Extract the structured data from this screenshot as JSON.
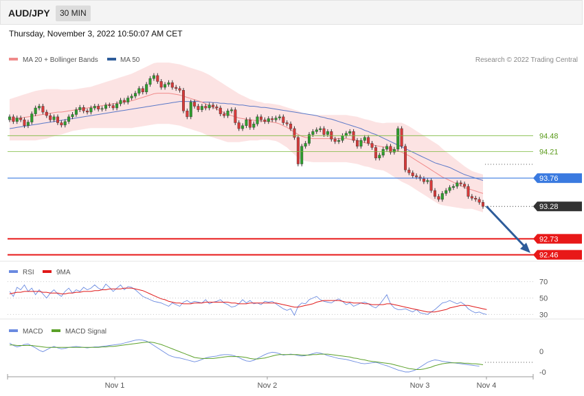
{
  "header": {
    "symbol": "AUD/JPY",
    "timeframe": "30 MIN"
  },
  "datetime": "Thursday, November 3, 2022 10:50:07 AM CET",
  "credit": "Research © 2022 Trading Central",
  "colors": {
    "up": "#2e9e2e",
    "down": "#d63a3a",
    "ma20": "#f08a8a",
    "band": "#fcdede",
    "ma50": "#5a78c8",
    "pivot": "#3a7ae0",
    "support": "#e81818",
    "resistance": "#7ab83a",
    "last": "#333333",
    "arrow": "#2e5c9a",
    "rsi": "#6a8ae0",
    "rsi_ma": "#e01818",
    "macd": "#6a8ae0",
    "macd_signal": "#5aa028"
  },
  "chart_data": [
    {
      "type": "candlestick",
      "name": "price",
      "legend": [
        "MA 20 + Bollinger Bands",
        "MA 50"
      ],
      "x_ticks": [
        "Nov 1",
        "Nov 2",
        "Nov 3",
        "Nov 4"
      ],
      "levels": [
        {
          "value": 94.48,
          "label": "94.48",
          "kind": "resistance"
        },
        {
          "value": 94.21,
          "label": "94.21",
          "kind": "resistance"
        },
        {
          "value": 93.76,
          "label": "93.76",
          "kind": "pivot"
        },
        {
          "value": 93.28,
          "label": "93.28",
          "kind": "last"
        },
        {
          "value": 92.73,
          "label": "92.73",
          "kind": "support"
        },
        {
          "value": 92.46,
          "label": "92.46",
          "kind": "support"
        }
      ],
      "close": [
        94.8,
        94.72,
        94.78,
        94.75,
        94.65,
        94.71,
        94.85,
        94.95,
        94.98,
        94.88,
        94.82,
        94.75,
        94.8,
        94.7,
        94.66,
        94.72,
        94.8,
        94.84,
        94.92,
        94.96,
        94.9,
        94.88,
        94.95,
        94.98,
        94.93,
        94.94,
        95.0,
        94.99,
        94.95,
        95.02,
        95.08,
        95.05,
        95.12,
        95.15,
        95.2,
        95.28,
        95.22,
        95.35,
        95.45,
        95.5,
        95.4,
        95.3,
        95.35,
        95.38,
        95.3,
        95.28,
        95.25,
        94.9,
        94.8,
        95.05,
        94.98,
        94.92,
        94.98,
        94.95,
        95.0,
        94.97,
        94.95,
        94.85,
        94.82,
        94.9,
        94.92,
        94.7,
        94.6,
        94.65,
        94.75,
        94.62,
        94.68,
        94.8,
        94.75,
        94.72,
        94.77,
        94.75,
        94.78,
        94.8,
        94.7,
        94.68,
        94.6,
        94.45,
        94.0,
        94.3,
        94.35,
        94.5,
        94.55,
        94.58,
        94.6,
        94.5,
        94.55,
        94.42,
        94.38,
        94.4,
        94.48,
        94.52,
        94.55,
        94.4,
        94.3,
        94.4,
        94.45,
        94.35,
        94.28,
        94.1,
        94.15,
        94.25,
        94.3,
        94.2,
        94.25,
        94.6,
        94.3,
        93.9,
        93.85,
        93.8,
        93.78,
        93.75,
        93.7,
        93.72,
        93.55,
        93.45,
        93.4,
        93.5,
        93.55,
        93.6,
        93.62,
        93.68,
        93.66,
        93.62,
        93.45,
        93.42,
        93.4,
        93.35,
        93.28
      ],
      "ma20": [
        94.75,
        94.76,
        94.77,
        94.78,
        94.79,
        94.8,
        94.81,
        94.82,
        94.83,
        94.84,
        94.85,
        94.86,
        94.87,
        94.88,
        94.88,
        94.89,
        94.9,
        94.91,
        94.92,
        94.93,
        94.94,
        94.95,
        94.96,
        94.97,
        94.98,
        94.99,
        95.0,
        95.01,
        95.02,
        95.03,
        95.04,
        95.05,
        95.06,
        95.07,
        95.09,
        95.11,
        95.13,
        95.15,
        95.17,
        95.19,
        95.2,
        95.2,
        95.2,
        95.2,
        95.19,
        95.18,
        95.17,
        95.15,
        95.13,
        95.11,
        95.09,
        95.07,
        95.05,
        95.02,
        94.99,
        94.96,
        94.93,
        94.9,
        94.87,
        94.84,
        94.82,
        94.8,
        94.78,
        94.77,
        94.76,
        94.75,
        94.74,
        94.73,
        94.73,
        94.72,
        94.72,
        94.71,
        94.7,
        94.68,
        94.65,
        94.62,
        94.58,
        94.54,
        94.5,
        94.47,
        94.45,
        94.44,
        94.43,
        94.43,
        94.43,
        94.43,
        94.43,
        94.43,
        94.43,
        94.43,
        94.43,
        94.43,
        94.42,
        94.41,
        94.4,
        94.38,
        94.36,
        94.35,
        94.33,
        94.31,
        94.3,
        94.29,
        94.28,
        94.26,
        94.24,
        94.22,
        94.2,
        94.17,
        94.14,
        94.1,
        94.06,
        94.02,
        93.98,
        93.94,
        93.9,
        93.86,
        93.82,
        93.78,
        93.75,
        93.72,
        93.69,
        93.66,
        93.63,
        93.6,
        93.58,
        93.56,
        93.54,
        93.52,
        93.5
      ],
      "bb_width": [
        0.35,
        0.36,
        0.37,
        0.38,
        0.39,
        0.4,
        0.41,
        0.42,
        0.42,
        0.42,
        0.42,
        0.41,
        0.4,
        0.39,
        0.38,
        0.37,
        0.36,
        0.35,
        0.35,
        0.35,
        0.35,
        0.35,
        0.35,
        0.36,
        0.37,
        0.38,
        0.39,
        0.4,
        0.41,
        0.42,
        0.43,
        0.44,
        0.45,
        0.46,
        0.47,
        0.48,
        0.49,
        0.5,
        0.51,
        0.52,
        0.52,
        0.52,
        0.52,
        0.52,
        0.52,
        0.52,
        0.52,
        0.52,
        0.52,
        0.52,
        0.52,
        0.52,
        0.52,
        0.52,
        0.52,
        0.51,
        0.5,
        0.49,
        0.48,
        0.47,
        0.45,
        0.43,
        0.41,
        0.39,
        0.37,
        0.35,
        0.34,
        0.33,
        0.32,
        0.31,
        0.31,
        0.31,
        0.31,
        0.32,
        0.33,
        0.34,
        0.36,
        0.38,
        0.4,
        0.4,
        0.4,
        0.4,
        0.4,
        0.4,
        0.4,
        0.4,
        0.4,
        0.4,
        0.4,
        0.4,
        0.4,
        0.4,
        0.4,
        0.4,
        0.4,
        0.4,
        0.4,
        0.4,
        0.4,
        0.4,
        0.4,
        0.4,
        0.42,
        0.44,
        0.46,
        0.48,
        0.5,
        0.5,
        0.5,
        0.5,
        0.5,
        0.5,
        0.5,
        0.5,
        0.5,
        0.5,
        0.5,
        0.48,
        0.46,
        0.44,
        0.42,
        0.4,
        0.38,
        0.36,
        0.34,
        0.32,
        0.32,
        0.32,
        0.32
      ],
      "ma50": [
        94.6,
        94.61,
        94.62,
        94.63,
        94.64,
        94.65,
        94.66,
        94.67,
        94.68,
        94.69,
        94.7,
        94.71,
        94.72,
        94.73,
        94.74,
        94.75,
        94.76,
        94.77,
        94.78,
        94.79,
        94.8,
        94.81,
        94.82,
        94.83,
        94.84,
        94.85,
        94.86,
        94.87,
        94.88,
        94.89,
        94.9,
        94.91,
        94.92,
        94.93,
        94.94,
        94.95,
        94.96,
        94.97,
        94.98,
        94.99,
        95.0,
        95.01,
        95.02,
        95.03,
        95.04,
        95.05,
        95.06,
        95.06,
        95.06,
        95.06,
        95.06,
        95.06,
        95.05,
        95.05,
        95.05,
        95.04,
        95.04,
        95.03,
        95.03,
        95.02,
        95.02,
        95.01,
        95.0,
        95.0,
        94.99,
        94.98,
        94.98,
        94.97,
        94.96,
        94.96,
        94.95,
        94.94,
        94.93,
        94.92,
        94.91,
        94.9,
        94.89,
        94.88,
        94.87,
        94.86,
        94.85,
        94.84,
        94.83,
        94.82,
        94.8,
        94.79,
        94.77,
        94.76,
        94.74,
        94.72,
        94.7,
        94.68,
        94.66,
        94.64,
        94.62,
        94.6,
        94.57,
        94.55,
        94.52,
        94.5,
        94.47,
        94.44,
        94.41,
        94.38,
        94.35,
        94.32,
        94.29,
        94.26,
        94.23,
        94.2,
        94.17,
        94.14,
        94.11,
        94.08,
        94.05,
        94.02,
        94.0,
        93.98,
        93.96,
        93.94,
        93.91,
        93.88,
        93.85,
        93.82,
        93.8,
        93.78,
        93.76,
        93.74,
        93.72
      ],
      "ylim": [
        92.35,
        95.65
      ]
    },
    {
      "type": "line",
      "name": "rsi",
      "legend": [
        "RSI",
        "9MA"
      ],
      "y_ticks": [
        "70",
        "50",
        "30"
      ],
      "ylim": [
        22,
        78
      ],
      "series": [
        {
          "name": "RSI",
          "values": [
            58,
            52,
            63,
            60,
            66,
            58,
            62,
            54,
            60,
            55,
            50,
            56,
            60,
            55,
            52,
            58,
            62,
            56,
            60,
            58,
            63,
            60,
            62,
            66,
            62,
            60,
            67,
            63,
            58,
            62,
            66,
            60,
            64,
            63,
            60,
            56,
            52,
            50,
            48,
            46,
            45,
            44,
            42,
            40,
            44,
            42,
            40,
            45,
            47,
            44,
            46,
            45,
            44,
            48,
            43,
            45,
            46,
            48,
            44,
            42,
            39,
            40,
            43,
            48,
            44,
            47,
            43,
            44,
            42,
            46,
            45,
            46,
            43,
            40,
            37,
            35,
            37,
            29,
            40,
            44,
            43,
            48,
            50,
            52,
            48,
            46,
            45,
            44,
            47,
            49,
            46,
            42,
            44,
            40,
            42,
            44,
            45,
            43,
            40,
            38,
            42,
            48,
            54,
            43,
            38,
            36,
            36,
            37,
            35,
            33,
            36,
            32,
            31,
            30,
            33,
            36,
            40,
            44,
            45,
            47,
            45,
            43,
            45,
            42,
            37,
            34,
            32,
            33,
            31,
            30
          ]
        },
        {
          "name": "9MA",
          "values": [
            55,
            56,
            57,
            57,
            58,
            58,
            58,
            58,
            58,
            57,
            57,
            56,
            56,
            56,
            55,
            55,
            56,
            56,
            57,
            57,
            58,
            58,
            58,
            59,
            59,
            60,
            60,
            61,
            61,
            61,
            61,
            62,
            62,
            62,
            61,
            60,
            59,
            57,
            55,
            53,
            51,
            49,
            48,
            46,
            45,
            44,
            44,
            43,
            43,
            43,
            44,
            44,
            44,
            45,
            45,
            45,
            45,
            45,
            45,
            45,
            44,
            44,
            43,
            43,
            43,
            44,
            44,
            44,
            44,
            44,
            44,
            44,
            44,
            43,
            42,
            41,
            40,
            39,
            39,
            40,
            41,
            42,
            43,
            45,
            46,
            47,
            47,
            47,
            47,
            47,
            46,
            45,
            45,
            44,
            44,
            44,
            43,
            43,
            42,
            42,
            42,
            42,
            43,
            43,
            42,
            41,
            40,
            39,
            38,
            37,
            36,
            35,
            34,
            33,
            33,
            33,
            34,
            35,
            36,
            38,
            39,
            40,
            41,
            41,
            41,
            40,
            39,
            38,
            37,
            36
          ]
        }
      ]
    },
    {
      "type": "line",
      "name": "macd",
      "legend": [
        "MACD",
        "MACD Signal"
      ],
      "y_ticks": [
        "0",
        "-0"
      ],
      "ylim": [
        -0.5,
        0.5
      ],
      "series": [
        {
          "name": "MACD",
          "values": [
            0.2,
            0.15,
            0.12,
            0.14,
            0.17,
            0.18,
            0.14,
            0.1,
            0.05,
            0.02,
            0.06,
            0.1,
            0.13,
            0.1,
            0.08,
            0.09,
            0.11,
            0.12,
            0.13,
            0.12,
            0.11,
            0.1,
            0.11,
            0.12,
            0.12,
            0.13,
            0.14,
            0.15,
            0.16,
            0.17,
            0.18,
            0.2,
            0.22,
            0.24,
            0.26,
            0.27,
            0.26,
            0.24,
            0.2,
            0.15,
            0.1,
            0.05,
            0.0,
            -0.05,
            -0.08,
            -0.1,
            -0.11,
            -0.13,
            -0.15,
            -0.17,
            -0.19,
            -0.17,
            -0.14,
            -0.11,
            -0.09,
            -0.08,
            -0.07,
            -0.05,
            -0.04,
            -0.04,
            -0.05,
            -0.07,
            -0.1,
            -0.14,
            -0.17,
            -0.18,
            -0.16,
            -0.12,
            -0.08,
            -0.04,
            -0.01,
            0.01,
            0.0,
            -0.02,
            -0.05,
            -0.04,
            -0.03,
            -0.04,
            -0.06,
            -0.07,
            -0.06,
            -0.04,
            -0.02,
            0.0,
            -0.01,
            -0.03,
            -0.06,
            -0.08,
            -0.1,
            -0.12,
            -0.13,
            -0.14,
            -0.16,
            -0.18,
            -0.2,
            -0.22,
            -0.23,
            -0.22,
            -0.21,
            -0.2,
            -0.22,
            -0.25,
            -0.27,
            -0.3,
            -0.33,
            -0.36,
            -0.38,
            -0.4,
            -0.4,
            -0.38,
            -0.35,
            -0.3,
            -0.25,
            -0.2,
            -0.17,
            -0.15,
            -0.16,
            -0.18,
            -0.19,
            -0.2,
            -0.21,
            -0.22,
            -0.23,
            -0.24,
            -0.25,
            -0.26,
            -0.27,
            -0.28
          ]
        },
        {
          "name": "MACD Signal",
          "values": [
            0.16,
            0.16,
            0.15,
            0.15,
            0.15,
            0.15,
            0.15,
            0.14,
            0.13,
            0.12,
            0.11,
            0.11,
            0.11,
            0.11,
            0.11,
            0.11,
            0.11,
            0.11,
            0.11,
            0.11,
            0.11,
            0.11,
            0.11,
            0.11,
            0.11,
            0.12,
            0.12,
            0.13,
            0.13,
            0.14,
            0.15,
            0.16,
            0.17,
            0.18,
            0.19,
            0.2,
            0.21,
            0.22,
            0.22,
            0.21,
            0.19,
            0.17,
            0.14,
            0.11,
            0.08,
            0.05,
            0.02,
            -0.01,
            -0.04,
            -0.07,
            -0.1,
            -0.11,
            -0.12,
            -0.12,
            -0.12,
            -0.12,
            -0.11,
            -0.1,
            -0.09,
            -0.08,
            -0.08,
            -0.08,
            -0.08,
            -0.09,
            -0.1,
            -0.12,
            -0.13,
            -0.13,
            -0.12,
            -0.11,
            -0.09,
            -0.07,
            -0.05,
            -0.04,
            -0.04,
            -0.04,
            -0.04,
            -0.04,
            -0.04,
            -0.05,
            -0.05,
            -0.05,
            -0.04,
            -0.04,
            -0.03,
            -0.03,
            -0.03,
            -0.04,
            -0.05,
            -0.06,
            -0.07,
            -0.08,
            -0.09,
            -0.11,
            -0.12,
            -0.14,
            -0.15,
            -0.17,
            -0.18,
            -0.19,
            -0.2,
            -0.21,
            -0.22,
            -0.23,
            -0.25,
            -0.27,
            -0.29,
            -0.31,
            -0.33,
            -0.34,
            -0.35,
            -0.35,
            -0.34,
            -0.32,
            -0.3,
            -0.27,
            -0.25,
            -0.23,
            -0.22,
            -0.21,
            -0.21,
            -0.21,
            -0.21,
            -0.22,
            -0.22,
            -0.23,
            -0.23,
            -0.24,
            -0.25
          ]
        }
      ]
    }
  ]
}
